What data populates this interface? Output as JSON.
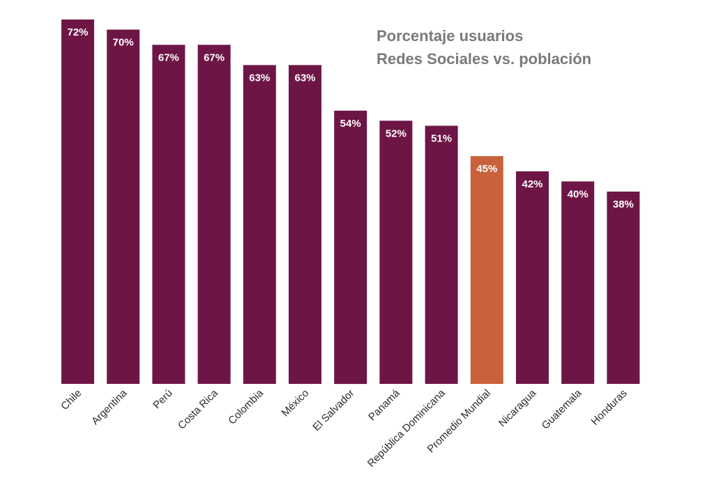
{
  "chart_data": {
    "type": "bar",
    "title": "Porcentaje usuarios",
    "subtitle": "Redes Sociales vs. población",
    "categories": [
      "Chile",
      "Argentina",
      "Perú",
      "Costa Rica",
      "Colombia",
      "México",
      "El Salvador",
      "Panamá",
      "República Dominicana",
      "Promedio Mundial",
      "Nicaragua",
      "Guatemala",
      "Honduras"
    ],
    "values": [
      72,
      70,
      67,
      67,
      63,
      63,
      54,
      52,
      51,
      45,
      42,
      40,
      38
    ],
    "value_labels": [
      "72%",
      "70%",
      "67%",
      "67%",
      "63%",
      "63%",
      "54%",
      "52%",
      "51%",
      "45%",
      "42%",
      "40%",
      "38%"
    ],
    "highlight_category": "Promedio Mundial",
    "ylim": [
      0,
      72
    ],
    "grid": false,
    "legend": "none",
    "colors": {
      "bar": "#6d1645",
      "highlight": "#c9623a",
      "title": "#7a7a7a",
      "value_label": "#ffffff",
      "category_label": "#2b2b2b"
    }
  }
}
